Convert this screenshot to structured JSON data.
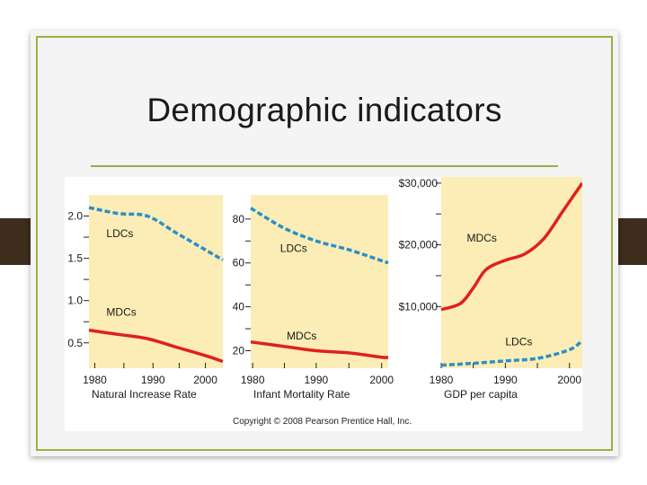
{
  "slide": {
    "title": "Demographic indicators",
    "copyright": "Copyright © 2008 Pearson Prentice Hall, Inc."
  },
  "colors": {
    "panel_bg": "#fbedb5",
    "mdc_line": "#e11f1f",
    "ldc_line": "#2c8fc9",
    "accent_rule": "#9bb040",
    "side_tab": "#3e2c1d"
  },
  "chart_data": [
    {
      "type": "line",
      "title": "",
      "xlabel": "Natural Increase Rate",
      "ylabel": "",
      "xlim": [
        1980,
        2003
      ],
      "ylim": [
        0.2,
        2.25
      ],
      "x_ticks": [
        "1980",
        "1990",
        "2000"
      ],
      "y_ticks": [
        "0.5",
        "1.0",
        "1.5",
        "2.0"
      ],
      "grid": false,
      "series": [
        {
          "name": "LDCs",
          "style": "dashed",
          "color": "#2c8fc9",
          "x": [
            1980,
            1985,
            1990,
            1995,
            2000,
            2003
          ],
          "y": [
            2.1,
            2.03,
            2.0,
            1.8,
            1.6,
            1.48
          ]
        },
        {
          "name": "MDCs",
          "style": "solid",
          "color": "#e11f1f",
          "x": [
            1980,
            1985,
            1990,
            1995,
            2000,
            2003
          ],
          "y": [
            0.65,
            0.6,
            0.55,
            0.45,
            0.35,
            0.28
          ]
        }
      ]
    },
    {
      "type": "line",
      "title": "",
      "xlabel": "Infant Mortality Rate",
      "ylabel": "",
      "xlim": [
        1980,
        2001
      ],
      "ylim": [
        12,
        91
      ],
      "x_ticks": [
        "1980",
        "1990",
        "2000"
      ],
      "y_ticks": [
        "20",
        "40",
        "60",
        "80"
      ],
      "grid": false,
      "series": [
        {
          "name": "LDCs",
          "style": "dashed",
          "color": "#2c8fc9",
          "x": [
            1980,
            1985,
            1990,
            1995,
            2000,
            2001
          ],
          "y": [
            85,
            76,
            70,
            66,
            61,
            60
          ]
        },
        {
          "name": "MDCs",
          "style": "solid",
          "color": "#e11f1f",
          "x": [
            1980,
            1985,
            1990,
            1995,
            2000,
            2001
          ],
          "y": [
            24,
            22,
            20,
            19,
            17,
            17
          ]
        }
      ]
    },
    {
      "type": "line",
      "title": "",
      "xlabel": "GDP per capita",
      "ylabel": "",
      "xlim": [
        1980,
        2002
      ],
      "ylim": [
        0,
        31000
      ],
      "x_ticks": [
        "1980",
        "1990",
        "2000"
      ],
      "y_ticks": [
        "$10,000",
        "$20,000",
        "$30,000"
      ],
      "grid": false,
      "series": [
        {
          "name": "MDCs",
          "style": "solid",
          "color": "#e11f1f",
          "x": [
            1980,
            1983,
            1985,
            1987,
            1990,
            1993,
            1996,
            1999,
            2002
          ],
          "y": [
            9500,
            10500,
            13000,
            16000,
            17500,
            18500,
            21000,
            25500,
            30000
          ]
        },
        {
          "name": "LDCs",
          "style": "dashed",
          "color": "#2c8fc9",
          "x": [
            1980,
            1985,
            1990,
            1995,
            2000,
            2002
          ],
          "y": [
            500,
            800,
            1200,
            1600,
            3000,
            4500
          ]
        }
      ]
    }
  ]
}
